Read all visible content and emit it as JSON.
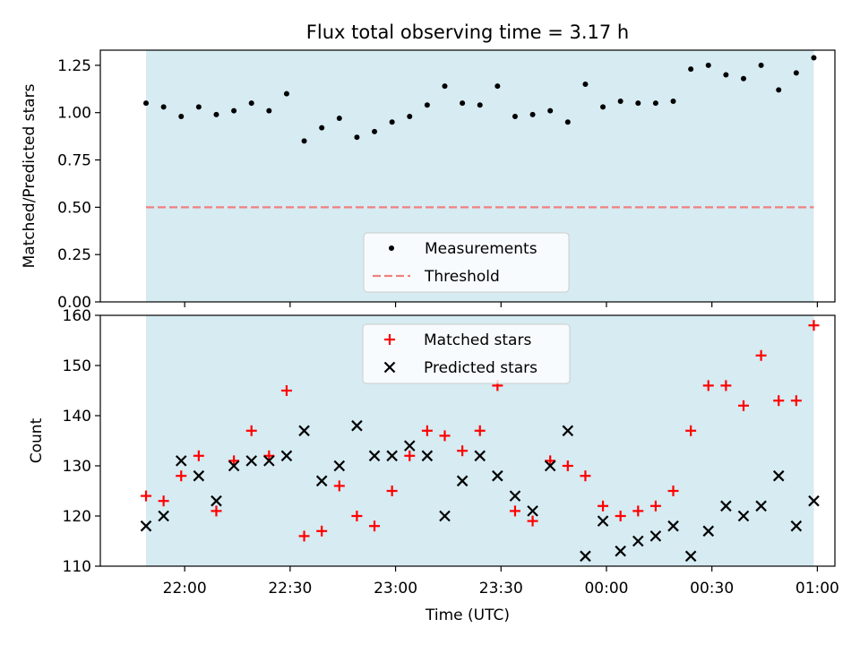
{
  "figure": {
    "title": "Flux total observing time = 3.17 h",
    "xlabel": "Time (UTC)"
  },
  "colors": {
    "shade": "#add8e6",
    "threshold_line": "#f08080",
    "matched_marker": "#ff0000",
    "predicted_marker": "#000000",
    "measurement_marker": "#000000",
    "axes": "#000000",
    "background": "#ffffff"
  },
  "chart_data": [
    {
      "type": "scatter",
      "ylabel": "Matched/Predicted stars",
      "ylim": [
        0.0,
        1.33
      ],
      "yticks": [
        0.0,
        0.25,
        0.5,
        0.75,
        1.0,
        1.25
      ],
      "ytick_labels": [
        "0.00",
        "0.25",
        "0.50",
        "0.75",
        "1.00",
        "1.25"
      ],
      "xlim": [
        "21:36",
        "01:05"
      ],
      "xticks": [
        "22:00",
        "22:30",
        "23:00",
        "23:30",
        "00:00",
        "00:30",
        "01:00"
      ],
      "x_ticklabels_shown": false,
      "shaded_span": [
        "21:49",
        "00:59"
      ],
      "grid": false,
      "legend_position": "bottom-center",
      "series": [
        {
          "name": "Measurements",
          "marker": "dot",
          "x": [
            "21:49",
            "21:54",
            "21:59",
            "22:04",
            "22:09",
            "22:14",
            "22:19",
            "22:24",
            "22:29",
            "22:34",
            "22:39",
            "22:44",
            "22:49",
            "22:54",
            "22:59",
            "23:04",
            "23:09",
            "23:14",
            "23:19",
            "23:24",
            "23:29",
            "23:34",
            "23:39",
            "23:44",
            "23:49",
            "23:54",
            "23:59",
            "00:04",
            "00:09",
            "00:14",
            "00:19",
            "00:24",
            "00:29",
            "00:34",
            "00:39",
            "00:44",
            "00:49",
            "00:54",
            "00:59"
          ],
          "y": [
            1.05,
            1.03,
            0.98,
            1.03,
            0.99,
            1.01,
            1.05,
            1.01,
            1.1,
            0.85,
            0.92,
            0.97,
            0.87,
            0.9,
            0.95,
            0.98,
            1.04,
            1.14,
            1.05,
            1.04,
            1.14,
            0.98,
            0.99,
            1.01,
            0.95,
            1.15,
            1.03,
            1.06,
            1.05,
            1.05,
            1.06,
            1.23,
            1.25,
            1.2,
            1.18,
            1.25,
            1.12,
            1.21,
            1.29
          ]
        },
        {
          "name": "Threshold",
          "marker": "dashed-line",
          "x": [
            "21:49",
            "00:59"
          ],
          "y": [
            0.5,
            0.5
          ]
        }
      ]
    },
    {
      "type": "scatter",
      "ylabel": "Count",
      "ylim": [
        110,
        160
      ],
      "yticks": [
        110,
        120,
        130,
        140,
        150,
        160
      ],
      "ytick_labels": [
        "110",
        "120",
        "130",
        "140",
        "150",
        "160"
      ],
      "xlim": [
        "21:36",
        "01:05"
      ],
      "xticks": [
        "22:00",
        "22:30",
        "23:00",
        "23:30",
        "00:00",
        "00:30",
        "01:00"
      ],
      "x_ticklabels_shown": true,
      "shaded_span": [
        "21:49",
        "00:59"
      ],
      "grid": false,
      "legend_position": "top-center",
      "series": [
        {
          "name": "Matched stars",
          "marker": "plus",
          "x": [
            "21:49",
            "21:54",
            "21:59",
            "22:04",
            "22:09",
            "22:14",
            "22:19",
            "22:24",
            "22:29",
            "22:34",
            "22:39",
            "22:44",
            "22:49",
            "22:54",
            "22:59",
            "23:04",
            "23:09",
            "23:14",
            "23:19",
            "23:24",
            "23:29",
            "23:34",
            "23:39",
            "23:44",
            "23:49",
            "23:54",
            "23:59",
            "00:04",
            "00:09",
            "00:14",
            "00:19",
            "00:24",
            "00:29",
            "00:34",
            "00:39",
            "00:44",
            "00:49",
            "00:54",
            "00:59"
          ],
          "y": [
            124,
            123,
            128,
            132,
            121,
            131,
            137,
            132,
            145,
            116,
            117,
            126,
            120,
            118,
            125,
            132,
            137,
            136,
            133,
            137,
            146,
            121,
            119,
            131,
            130,
            128,
            122,
            120,
            121,
            122,
            125,
            137,
            146,
            146,
            142,
            152,
            143,
            143,
            158
          ]
        },
        {
          "name": "Predicted stars",
          "marker": "x",
          "x": [
            "21:49",
            "21:54",
            "21:59",
            "22:04",
            "22:09",
            "22:14",
            "22:19",
            "22:24",
            "22:29",
            "22:34",
            "22:39",
            "22:44",
            "22:49",
            "22:54",
            "22:59",
            "23:04",
            "23:09",
            "23:14",
            "23:19",
            "23:24",
            "23:29",
            "23:34",
            "23:39",
            "23:44",
            "23:49",
            "23:54",
            "23:59",
            "00:04",
            "00:09",
            "00:14",
            "00:19",
            "00:24",
            "00:29",
            "00:34",
            "00:39",
            "00:44",
            "00:49",
            "00:54",
            "00:59"
          ],
          "y": [
            118,
            120,
            131,
            128,
            123,
            130,
            131,
            131,
            132,
            137,
            127,
            130,
            138,
            132,
            132,
            134,
            132,
            120,
            127,
            132,
            128,
            124,
            121,
            130,
            137,
            112,
            119,
            113,
            115,
            116,
            118,
            112,
            117,
            122,
            120,
            122,
            128,
            118,
            123
          ]
        }
      ]
    }
  ]
}
